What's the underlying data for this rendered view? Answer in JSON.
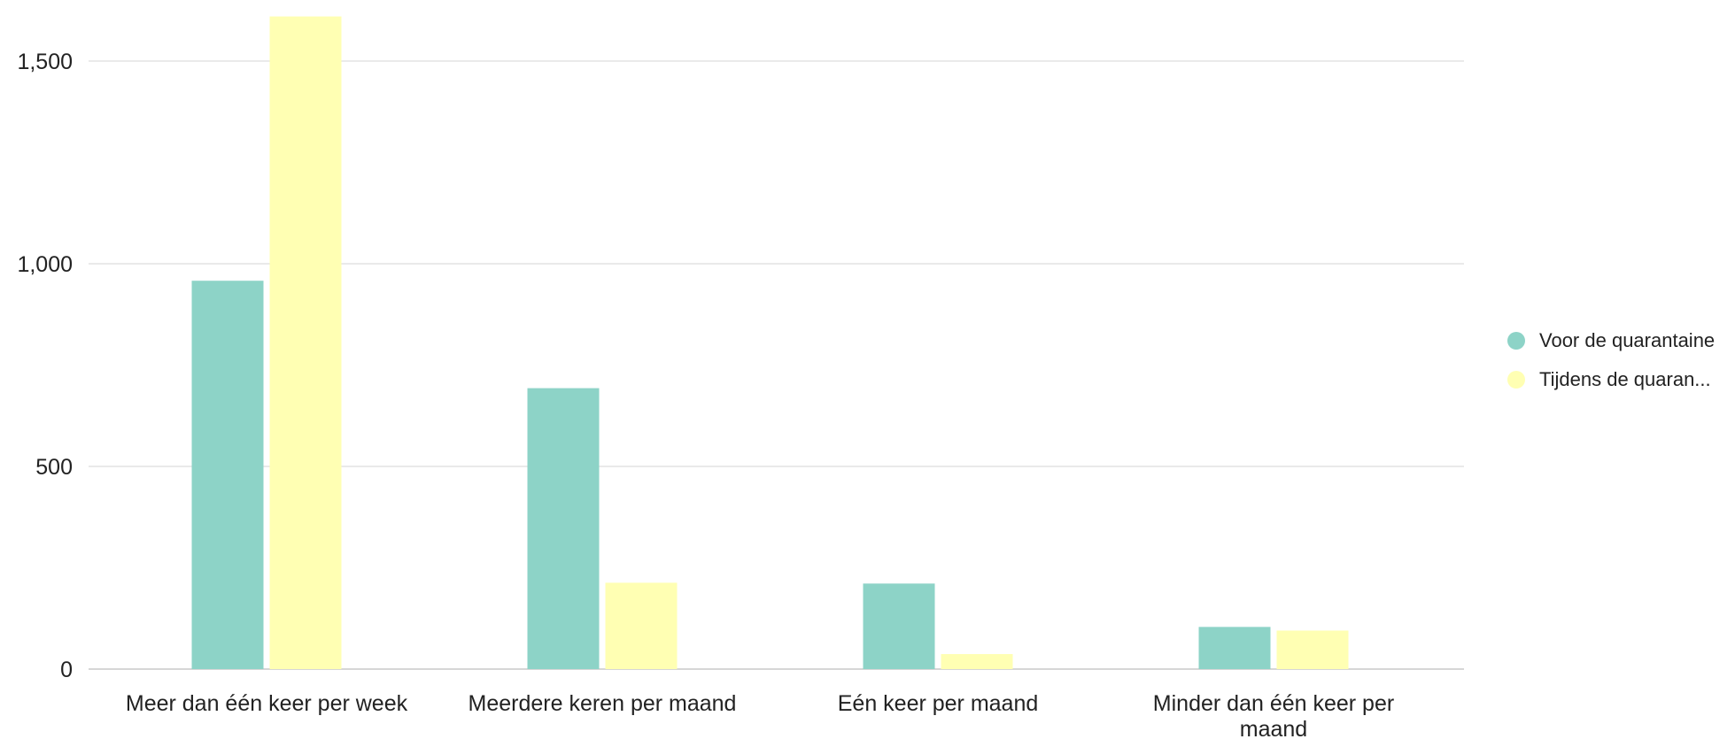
{
  "chart_data": {
    "type": "bar",
    "title": "",
    "xlabel": "",
    "ylabel": "",
    "categories": [
      "Meer dan één keer per week",
      "Meerdere keren per maand",
      "Eén keer per maand",
      "Minder dan één keer per maand"
    ],
    "category_label_lines": [
      [
        "Meer dan één keer per week"
      ],
      [
        "Meerdere keren per maand"
      ],
      [
        "Eén keer per maand"
      ],
      [
        "Minder dan één keer per",
        "maand"
      ]
    ],
    "series": [
      {
        "name": "Voor de quarantaine",
        "color": "#8dd3c7",
        "values": [
          958,
          693,
          211,
          104
        ]
      },
      {
        "name": "Tijdens de quaran...",
        "color": "#ffffb3",
        "values": [
          1610,
          213,
          37,
          95
        ]
      }
    ],
    "ylim": [
      0,
      1620
    ],
    "yticks": [
      0,
      500,
      1000,
      1500
    ],
    "ytick_labels": [
      "0",
      "500",
      "1,000",
      "1,500"
    ],
    "grid": true,
    "legend_position": "right"
  }
}
